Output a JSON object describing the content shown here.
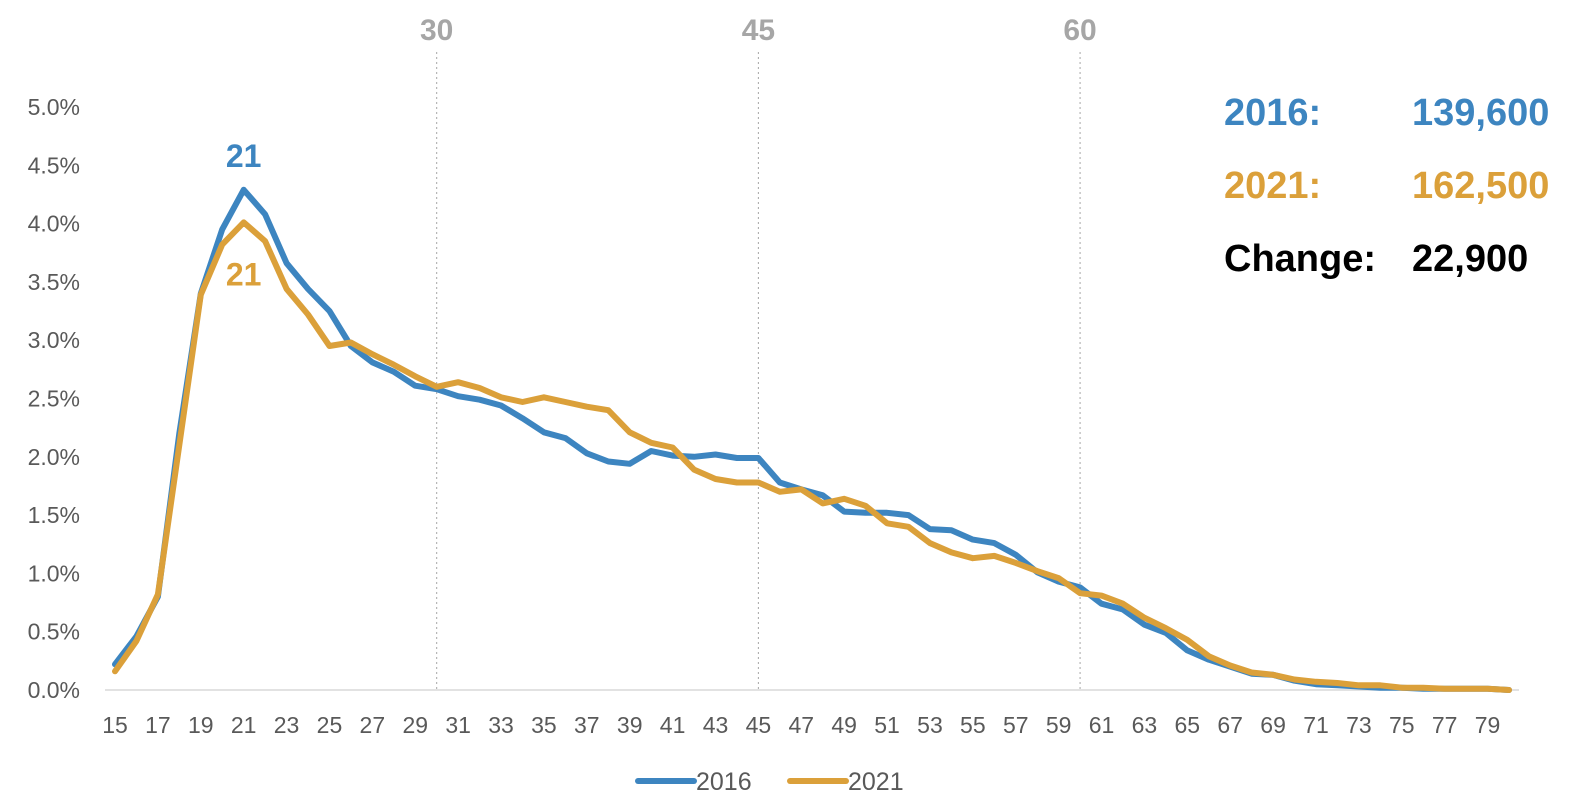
{
  "chart_data": {
    "type": "line",
    "x": [
      15,
      16,
      17,
      18,
      19,
      20,
      21,
      22,
      23,
      24,
      25,
      26,
      27,
      28,
      29,
      30,
      31,
      32,
      33,
      34,
      35,
      36,
      37,
      38,
      39,
      40,
      41,
      42,
      43,
      44,
      45,
      46,
      47,
      48,
      49,
      50,
      51,
      52,
      53,
      54,
      55,
      56,
      57,
      58,
      59,
      60,
      61,
      62,
      63,
      64,
      65,
      66,
      67,
      68,
      69,
      70,
      71,
      72,
      73,
      74,
      75,
      76,
      77,
      78,
      79,
      80
    ],
    "x_tick_labels": [
      "15",
      "17",
      "19",
      "21",
      "23",
      "25",
      "27",
      "29",
      "31",
      "33",
      "35",
      "37",
      "39",
      "41",
      "43",
      "45",
      "47",
      "49",
      "51",
      "53",
      "55",
      "57",
      "59",
      "61",
      "63",
      "65",
      "67",
      "69",
      "71",
      "73",
      "75",
      "77",
      "79"
    ],
    "y_tick_labels": [
      "0.0%",
      "0.5%",
      "1.0%",
      "1.5%",
      "2.0%",
      "2.5%",
      "3.0%",
      "3.5%",
      "4.0%",
      "4.5%",
      "5.0%"
    ],
    "ylim": [
      0,
      5.0
    ],
    "reference_lines": [
      {
        "x": 30,
        "label": "30"
      },
      {
        "x": 45,
        "label": "45"
      },
      {
        "x": 60,
        "label": "60"
      }
    ],
    "series": [
      {
        "name": "2016",
        "color": "#3d85c0",
        "values": [
          0.22,
          0.46,
          0.8,
          2.2,
          3.4,
          3.95,
          4.29,
          4.08,
          3.66,
          3.44,
          3.25,
          2.95,
          2.81,
          2.73,
          2.61,
          2.58,
          2.52,
          2.49,
          2.44,
          2.33,
          2.21,
          2.16,
          2.03,
          1.96,
          1.94,
          2.05,
          2.01,
          2.0,
          2.02,
          1.99,
          1.99,
          1.78,
          1.72,
          1.67,
          1.53,
          1.52,
          1.52,
          1.5,
          1.38,
          1.37,
          1.29,
          1.26,
          1.16,
          1.01,
          0.93,
          0.88,
          0.74,
          0.69,
          0.56,
          0.49,
          0.34,
          0.26,
          0.2,
          0.14,
          0.13,
          0.08,
          0.05,
          0.04,
          0.03,
          0.02,
          0.02,
          0.01,
          0.01,
          0.01,
          0.01,
          0.0
        ],
        "peak": {
          "x": 21,
          "label": "21"
        }
      },
      {
        "name": "2021",
        "color": "#dba03a",
        "values": [
          0.16,
          0.42,
          0.82,
          2.1,
          3.39,
          3.82,
          4.01,
          3.85,
          3.44,
          3.22,
          2.95,
          2.98,
          2.88,
          2.79,
          2.69,
          2.6,
          2.64,
          2.59,
          2.51,
          2.47,
          2.51,
          2.47,
          2.43,
          2.4,
          2.21,
          2.12,
          2.08,
          1.89,
          1.81,
          1.78,
          1.78,
          1.7,
          1.72,
          1.6,
          1.64,
          1.58,
          1.43,
          1.4,
          1.26,
          1.18,
          1.13,
          1.15,
          1.09,
          1.02,
          0.96,
          0.83,
          0.81,
          0.74,
          0.62,
          0.53,
          0.43,
          0.29,
          0.21,
          0.15,
          0.13,
          0.09,
          0.07,
          0.06,
          0.04,
          0.04,
          0.02,
          0.02,
          0.01,
          0.01,
          0.01,
          0.0
        ],
        "peak": {
          "x": 21,
          "label": "21"
        }
      }
    ],
    "legend": {
      "position": "bottom",
      "entries": [
        "2016",
        "2021"
      ]
    },
    "annotations": [
      {
        "label": "2016:",
        "value": "139,600",
        "color": "#3d85c0"
      },
      {
        "label": "2021:",
        "value": "162,500",
        "color": "#dba03a"
      },
      {
        "label": "Change:",
        "value": "22,900",
        "color": "#000000"
      }
    ],
    "grid": false
  }
}
